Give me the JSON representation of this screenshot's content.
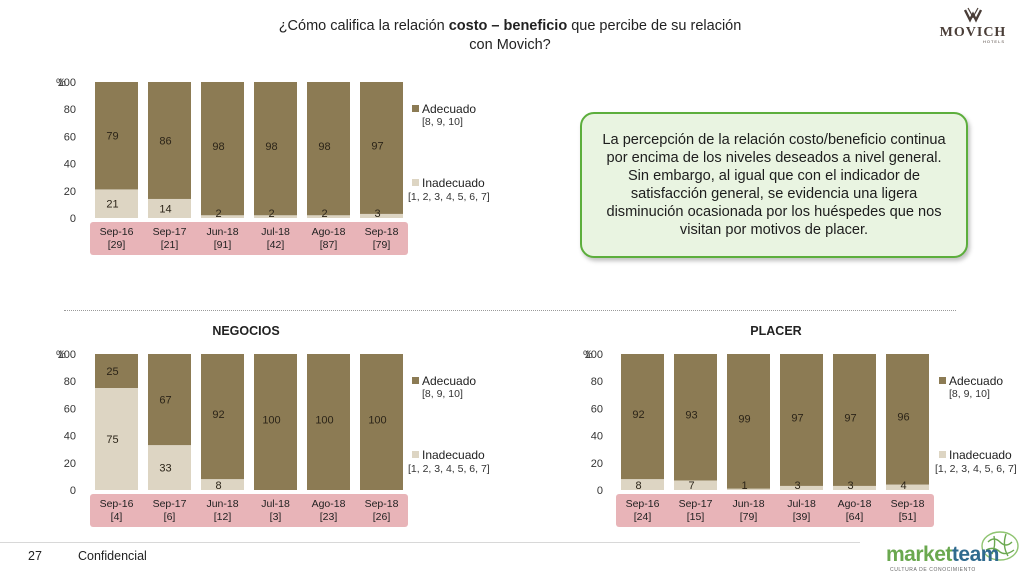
{
  "header": {
    "title_pre": "¿Cómo califica la relación ",
    "title_bold": "costo – beneficio",
    "title_post": " que percibe de su relación",
    "title_line2": "con Movich?",
    "brand": "MOVICH",
    "brand_sub": "HOTELS"
  },
  "callout": {
    "text": "La percepción de la relación costo/beneficio continua por encima de los niveles deseados a nivel general. Sin embargo, al igual que con el indicador de satisfacción general, se evidencia una ligera disminución ocasionada por los huéspedes que nos visitan por motivos de placer."
  },
  "footer": {
    "page_number": "27",
    "label": "Confidencial",
    "brand": "marketteam",
    "brand_part1": "market",
    "brand_part2": "team",
    "brand_sub": "CULTURA DE CONOCIMIENTO"
  },
  "colors": {
    "adecuado": "#8c7b54",
    "inadecuado": "#ddd5c3",
    "axis_band": "#e8b4b8",
    "callout_border": "#5cae3c",
    "callout_fill": "#e9f4e1"
  },
  "chart_data": [
    {
      "type": "bar",
      "stacked": true,
      "title": "",
      "ylabel": "%",
      "ylim": [
        0,
        100
      ],
      "yticks": [
        "0",
        "20",
        "40",
        "60",
        "80",
        "100"
      ],
      "categories": [
        "Sep-16",
        "Sep-17",
        "Jun-18",
        "Jul-18",
        "Ago-18",
        "Sep-18"
      ],
      "category_bases": [
        "[29]",
        "[21]",
        "[91]",
        "[42]",
        "[87]",
        "[79]"
      ],
      "series": [
        {
          "name": "Inadecuado",
          "legend_sub": "[1, 2, 3, 4, 5, 6, 7]",
          "color": "#ddd5c3",
          "values": [
            21,
            14,
            2,
            2,
            2,
            3
          ]
        },
        {
          "name": "Adecuado",
          "legend_sub": "[8, 9, 10]",
          "color": "#8c7b54",
          "values": [
            79,
            86,
            98,
            98,
            98,
            97
          ]
        }
      ],
      "legend": "right"
    },
    {
      "type": "bar",
      "stacked": true,
      "title": "NEGOCIOS",
      "ylabel": "%",
      "ylim": [
        0,
        100
      ],
      "yticks": [
        "0",
        "20",
        "40",
        "60",
        "80",
        "100"
      ],
      "categories": [
        "Sep-16",
        "Sep-17",
        "Jun-18",
        "Jul-18",
        "Ago-18",
        "Sep-18"
      ],
      "category_bases": [
        "[4]",
        "[6]",
        "[12]",
        "[3]",
        "[23]",
        "[26]"
      ],
      "series": [
        {
          "name": "Inadecuado",
          "legend_sub": "[1, 2, 3, 4, 5, 6, 7]",
          "color": "#ddd5c3",
          "values": [
            75,
            33,
            8,
            null,
            null,
            null
          ]
        },
        {
          "name": "Adecuado",
          "legend_sub": "[8, 9, 10]",
          "color": "#8c7b54",
          "values": [
            25,
            67,
            92,
            100,
            100,
            100
          ]
        }
      ],
      "legend": "right"
    },
    {
      "type": "bar",
      "stacked": true,
      "title": "PLACER",
      "ylabel": "%",
      "ylim": [
        0,
        100
      ],
      "yticks": [
        "0",
        "20",
        "40",
        "60",
        "80",
        "100"
      ],
      "categories": [
        "Sep-16",
        "Sep-17",
        "Jun-18",
        "Jul-18",
        "Ago-18",
        "Sep-18"
      ],
      "category_bases": [
        "[24]",
        "[15]",
        "[79]",
        "[39]",
        "[64]",
        "[51]"
      ],
      "series": [
        {
          "name": "Inadecuado",
          "legend_sub": "[1, 2, 3, 4, 5, 6, 7]",
          "color": "#ddd5c3",
          "values": [
            8,
            7,
            1,
            3,
            3,
            4
          ]
        },
        {
          "name": "Adecuado",
          "legend_sub": "[8, 9, 10]",
          "color": "#8c7b54",
          "values": [
            92,
            93,
            99,
            97,
            97,
            96
          ]
        }
      ],
      "legend": "right"
    }
  ]
}
